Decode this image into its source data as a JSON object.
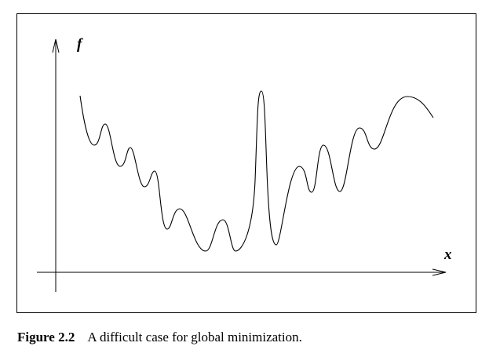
{
  "figure": {
    "label": "Figure 2.2",
    "caption": "A difficult case for global minimization."
  },
  "axes": {
    "y_label": "f",
    "x_label": "x"
  },
  "colors": {
    "line": "#000000",
    "background": "#ffffff"
  }
}
